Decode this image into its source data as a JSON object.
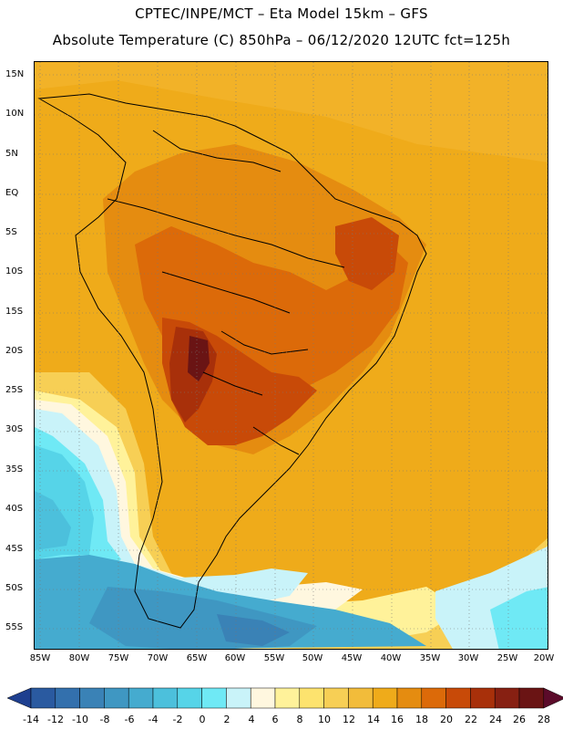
{
  "header": {
    "line1": "CPTEC/INPE/MCT –  Eta Model 15km – GFS",
    "line2": "Absolute Temperature (C) 850hPa – 06/12/2020 12UTC fct=125h"
  },
  "map": {
    "lat_labels": [
      "15N",
      "10N",
      "5N",
      "EQ",
      "5S",
      "10S",
      "15S",
      "20S",
      "25S",
      "30S",
      "35S",
      "40S",
      "45S",
      "50S",
      "55S"
    ],
    "lon_labels": [
      "85W",
      "80W",
      "75W",
      "70W",
      "65W",
      "60W",
      "55W",
      "50W",
      "45W",
      "40W",
      "35W",
      "30W",
      "25W",
      "20W"
    ]
  },
  "colorbar": {
    "labels": [
      "-14",
      "-12",
      "-10",
      "-8",
      "-6",
      "-4",
      "-2",
      "0",
      "2",
      "4",
      "6",
      "8",
      "10",
      "12",
      "14",
      "16",
      "18",
      "20",
      "22",
      "24",
      "26",
      "28"
    ],
    "colors": [
      "#1e3f8f",
      "#2a5aa0",
      "#3370ad",
      "#3a82b6",
      "#3f97c2",
      "#45abcf",
      "#4cc0dc",
      "#56d4e8",
      "#6fe9f5",
      "#c9f3f9",
      "#fff7df",
      "#fff29a",
      "#fde36e",
      "#f7cf55",
      "#f2bc3a",
      "#efab1a",
      "#e58c10",
      "#dc6a09",
      "#c84a08",
      "#a8300a",
      "#872012",
      "#6a1414",
      "#5b0b2a"
    ]
  }
}
